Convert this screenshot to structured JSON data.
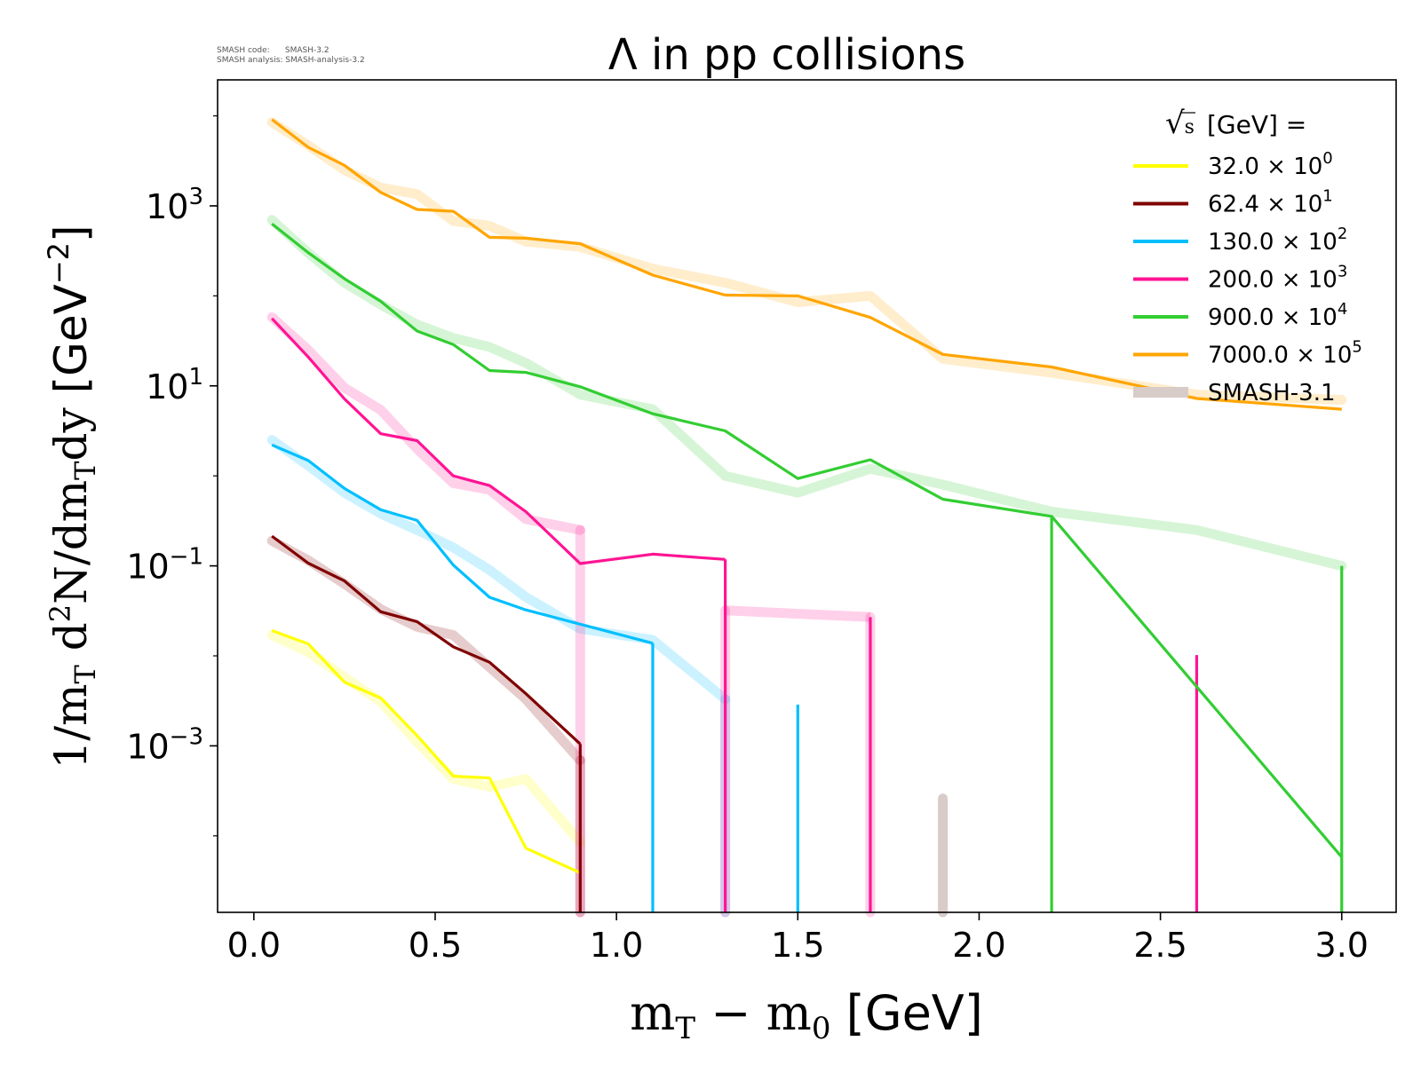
{
  "version_note": {
    "line1": "SMASH code:      SMASH-3.2",
    "line2": "SMASH analysis: SMASH-analysis-3.2"
  },
  "chart_data": {
    "type": "line",
    "title": "Λ in pp collisions",
    "xlabel": "m_T − m_0 [GeV]",
    "ylabel": "1/m_T d²N/dm_T dy [GeV⁻²]",
    "xlim": [
      -0.1,
      3.15
    ],
    "ylim_log10": [
      -4.85,
      4.4
    ],
    "y_scale": "log",
    "grid": false,
    "x_ticks": [
      "0.0",
      "0.5",
      "1.0",
      "1.5",
      "2.0",
      "2.5",
      "3.0"
    ],
    "x_tick_values": [
      0.0,
      0.5,
      1.0,
      1.5,
      2.0,
      2.5,
      3.0
    ],
    "y_ticks": [
      {
        "value": 1000,
        "base": "10",
        "exp": "3"
      },
      {
        "value": 10,
        "base": "10",
        "exp": "1"
      },
      {
        "value": 0.1,
        "base": "10",
        "exp": "−1"
      },
      {
        "value": 0.001,
        "base": "10",
        "exp": "−3"
      }
    ],
    "legend": {
      "placement": "top-right",
      "title": "√s [GeV] =",
      "title_sqrt": "√",
      "title_s": "s",
      "title_rest": "[GeV] =",
      "entries": [
        {
          "label": "32.0 × 10",
          "exp": "0",
          "color": "#ffff00"
        },
        {
          "label": "62.4 × 10",
          "exp": "1",
          "color": "#800000"
        },
        {
          "label": "130.0 × 10",
          "exp": "2",
          "color": "#00bfff"
        },
        {
          "label": "200.0 × 10",
          "exp": "3",
          "color": "#ff1493"
        },
        {
          "label": "900.0 × 10",
          "exp": "4",
          "color": "#32cd32"
        },
        {
          "label": "7000.0 × 10",
          "exp": "5",
          "color": "#ffa500"
        },
        {
          "label": "SMASH-3.1",
          "exp": "",
          "color": "#d8ccc8"
        }
      ]
    },
    "series": [
      {
        "name": "32.0 × 10⁰",
        "color": "#ffff00",
        "current": [
          [
            0.05,
            0.0191
          ],
          [
            0.15,
            0.0136
          ],
          [
            0.25,
            0.0051
          ],
          [
            0.35,
            0.0034
          ],
          [
            0.45,
            0.0013
          ],
          [
            0.55,
            0.00046
          ],
          [
            0.65,
            0.00044
          ],
          [
            0.75,
            7.3e-05
          ],
          [
            0.9,
            3.89e-05
          ]
        ],
        "reference": [
          [
            0.05,
            0.017
          ],
          [
            0.15,
            0.011
          ],
          [
            0.25,
            0.0058
          ],
          [
            0.35,
            0.0031
          ],
          [
            0.45,
            0.0011
          ],
          [
            0.55,
            0.00043
          ],
          [
            0.65,
            0.00035
          ],
          [
            0.75,
            0.00043
          ],
          [
            0.9,
            8.5e-05
          ]
        ],
        "drop_current": [],
        "drop_reference": []
      },
      {
        "name": "62.4 × 10¹",
        "color": "#800000",
        "current": [
          [
            0.05,
            0.214
          ],
          [
            0.15,
            0.107
          ],
          [
            0.25,
            0.068
          ],
          [
            0.35,
            0.0309
          ],
          [
            0.45,
            0.024
          ],
          [
            0.55,
            0.0126
          ],
          [
            0.65,
            0.0085
          ],
          [
            0.75,
            0.0038
          ],
          [
            0.9,
            0.00105
          ]
        ],
        "reference": [
          [
            0.05,
            0.19
          ],
          [
            0.15,
            0.115
          ],
          [
            0.25,
            0.063
          ],
          [
            0.35,
            0.033
          ],
          [
            0.45,
            0.021
          ],
          [
            0.55,
            0.017
          ],
          [
            0.65,
            0.0075
          ],
          [
            0.75,
            0.0033
          ],
          [
            0.9,
            0.00069
          ]
        ],
        "drop_current": [
          0.9
        ],
        "drop_reference": [
          0.9,
          1.9
        ]
      },
      {
        "name": "130.0 × 10²",
        "color": "#00bfff",
        "current": [
          [
            0.05,
            2.21
          ],
          [
            0.15,
            1.48
          ],
          [
            0.25,
            0.724
          ],
          [
            0.35,
            0.42
          ],
          [
            0.45,
            0.32
          ],
          [
            0.55,
            0.102
          ],
          [
            0.65,
            0.0447
          ],
          [
            0.75,
            0.0324
          ],
          [
            1.1,
            0.0138
          ]
        ],
        "reference": [
          [
            0.05,
            2.5
          ],
          [
            0.15,
            1.3
          ],
          [
            0.25,
            0.65
          ],
          [
            0.35,
            0.38
          ],
          [
            0.45,
            0.25
          ],
          [
            0.55,
            0.16
          ],
          [
            0.65,
            0.09
          ],
          [
            0.75,
            0.045
          ],
          [
            0.9,
            0.02
          ],
          [
            1.1,
            0.015
          ],
          [
            1.3,
            0.0033
          ]
        ],
        "drop_current": [
          1.1
        ],
        "drop_reference": [
          1.3
        ],
        "spikes": [
          [
            1.5,
            0.00288
          ]
        ]
      },
      {
        "name": "200.0 × 10³",
        "color": "#ff1493",
        "current": [
          [
            0.05,
            56.2
          ],
          [
            0.15,
            20.9
          ],
          [
            0.25,
            7.16
          ],
          [
            0.35,
            2.94
          ],
          [
            0.45,
            2.46
          ],
          [
            0.55,
            1.0
          ],
          [
            0.65,
            0.78
          ],
          [
            0.75,
            0.4
          ],
          [
            0.9,
            0.106
          ],
          [
            1.1,
            0.135
          ],
          [
            1.3,
            0.118
          ]
        ],
        "reference": [
          [
            0.05,
            58
          ],
          [
            0.15,
            25
          ],
          [
            0.25,
            9.5
          ],
          [
            0.35,
            5.4
          ],
          [
            0.45,
            2.0
          ],
          [
            0.55,
            0.83
          ],
          [
            0.65,
            0.7
          ],
          [
            0.75,
            0.33
          ],
          [
            0.9,
            0.25
          ]
        ],
        "ref_tail": [
          [
            1.3,
            0.032
          ],
          [
            1.7,
            0.027
          ]
        ],
        "drop_current": [
          1.3
        ],
        "drop_reference": [
          0.9,
          1.3,
          1.7
        ],
        "spikes": [
          [
            1.7,
            0.0269
          ],
          [
            2.6,
            0.0102
          ]
        ]
      },
      {
        "name": "900.0 × 10⁴",
        "color": "#32cd32",
        "current": [
          [
            0.05,
            631
          ],
          [
            0.15,
            302
          ],
          [
            0.25,
            155
          ],
          [
            0.35,
            87.1
          ],
          [
            0.45,
            40.7
          ],
          [
            0.55,
            28.8
          ],
          [
            0.65,
            14.8
          ],
          [
            0.75,
            14.1
          ],
          [
            0.9,
            9.77
          ],
          [
            1.1,
            4.9
          ],
          [
            1.3,
            3.16
          ],
          [
            1.5,
            0.933
          ],
          [
            1.7,
            1.51
          ],
          [
            1.9,
            0.55
          ],
          [
            2.2,
            0.355
          ],
          [
            3.0,
            5.8e-05
          ]
        ],
        "reference": [
          [
            0.05,
            700
          ],
          [
            0.15,
            300
          ],
          [
            0.25,
            140
          ],
          [
            0.35,
            80
          ],
          [
            0.45,
            48
          ],
          [
            0.55,
            34
          ],
          [
            0.65,
            27
          ],
          [
            0.75,
            18
          ],
          [
            0.9,
            8.0
          ],
          [
            1.1,
            5.5
          ],
          [
            1.3,
            1.0
          ],
          [
            1.5,
            0.65
          ],
          [
            1.7,
            1.2
          ],
          [
            1.9,
            0.8
          ],
          [
            2.2,
            0.4
          ],
          [
            2.6,
            0.25
          ],
          [
            3.0,
            0.1
          ]
        ],
        "drop_current": [
          2.2
        ],
        "drop_reference": [],
        "spikes": [
          [
            3.0,
            0.1
          ]
        ]
      },
      {
        "name": "7000.0 × 10⁵",
        "color": "#ffa500",
        "current": [
          [
            0.05,
            9120
          ],
          [
            0.15,
            4470
          ],
          [
            0.25,
            2820
          ],
          [
            0.35,
            1410
          ],
          [
            0.45,
            912
          ],
          [
            0.55,
            871
          ],
          [
            0.65,
            447
          ],
          [
            0.75,
            437
          ],
          [
            0.9,
            380
          ],
          [
            1.1,
            170
          ],
          [
            1.3,
            102
          ],
          [
            1.5,
            100
          ],
          [
            1.7,
            57.5
          ],
          [
            1.9,
            22.4
          ],
          [
            2.2,
            16.2
          ],
          [
            2.6,
            7.24
          ],
          [
            3.0,
            5.5
          ]
        ],
        "reference": [
          [
            0.05,
            8500
          ],
          [
            0.15,
            4700
          ],
          [
            0.25,
            2500
          ],
          [
            0.35,
            1600
          ],
          [
            0.45,
            1350
          ],
          [
            0.55,
            680
          ],
          [
            0.65,
            600
          ],
          [
            0.75,
            400
          ],
          [
            0.9,
            350
          ],
          [
            1.1,
            200
          ],
          [
            1.3,
            140
          ],
          [
            1.5,
            85
          ],
          [
            1.7,
            100
          ],
          [
            1.9,
            20
          ],
          [
            2.2,
            14
          ],
          [
            2.6,
            8
          ],
          [
            3.0,
            7
          ]
        ],
        "drop_current": [],
        "drop_reference": []
      }
    ]
  }
}
